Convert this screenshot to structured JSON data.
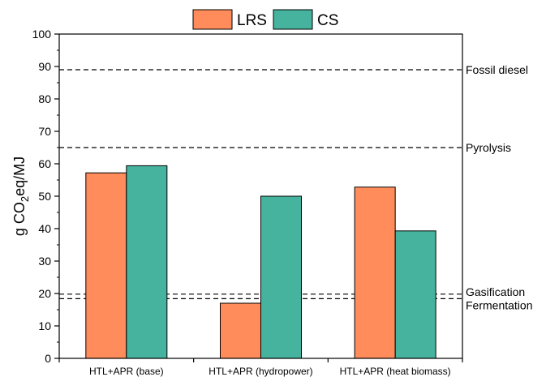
{
  "chart_data": {
    "type": "bar",
    "categories": [
      "HTL+APR (base)",
      "HTL+APR (hydropower)",
      "HTL+APR (heat biomass)"
    ],
    "series": [
      {
        "name": "LRS",
        "values": [
          57.2,
          17.0,
          52.8
        ],
        "color": "#FF8C5A"
      },
      {
        "name": "CS",
        "values": [
          59.4,
          50.0,
          39.3
        ],
        "color": "#45B39D"
      }
    ],
    "ylabel": "g CO2eq/MJ",
    "ylim": [
      0,
      100
    ],
    "yticks": [
      0,
      10,
      20,
      30,
      40,
      50,
      60,
      70,
      80,
      90,
      100
    ],
    "reference_lines": [
      {
        "label": "Fossil diesel",
        "value": 89
      },
      {
        "label": "Pyrolysis",
        "value": 65
      },
      {
        "label": "Gasification",
        "value": 19.8
      },
      {
        "label": "Fermentation",
        "value": 18.4
      }
    ],
    "legend_position": "top-center",
    "grid": false
  }
}
